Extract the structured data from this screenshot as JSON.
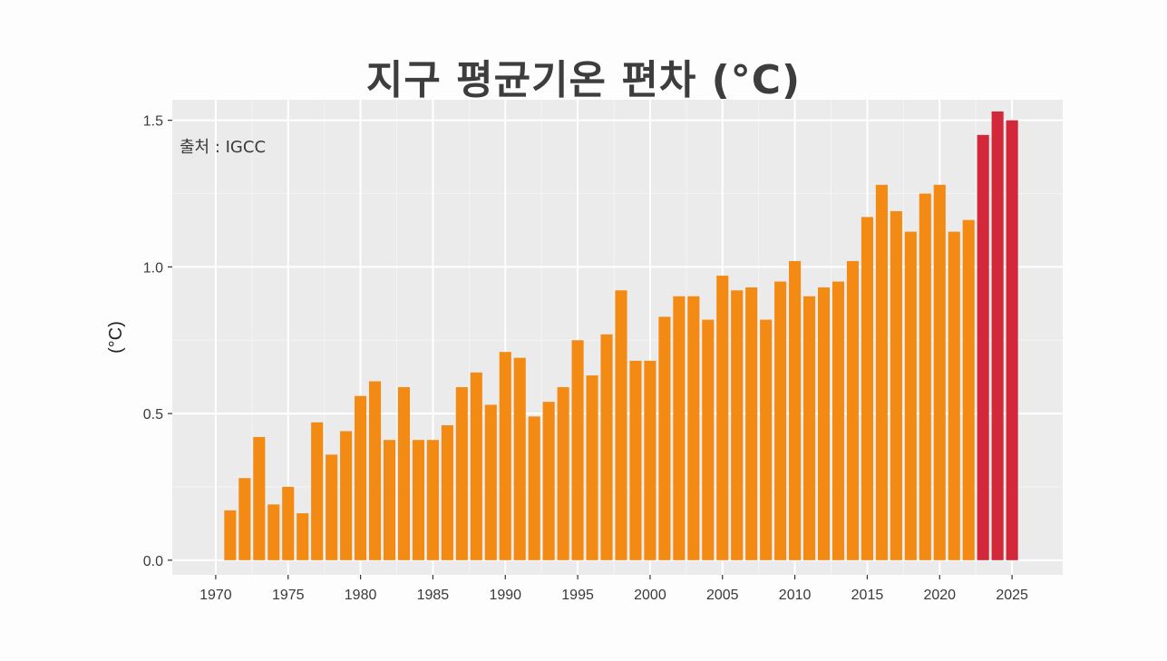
{
  "chart_data": {
    "type": "bar",
    "title": "지구 평균기온 편차 (°C)",
    "ylabel": "(°C)",
    "xlabel": "",
    "annotation": "출처 : IGCC",
    "ylim": [
      -0.05,
      1.57
    ],
    "xlim": [
      1967,
      2028.5
    ],
    "yticks": [
      0.0,
      0.5,
      1.0,
      1.5
    ],
    "ytick_labels": [
      "0.0",
      "0.5",
      "1.0",
      "1.5"
    ],
    "xticks": [
      1970,
      1975,
      1980,
      1985,
      1990,
      1995,
      2000,
      2005,
      2010,
      2015,
      2020,
      2025
    ],
    "xtick_labels": [
      "1970",
      "1975",
      "1980",
      "1985",
      "1990",
      "1995",
      "2000",
      "2005",
      "2010",
      "2015",
      "2020",
      "2025"
    ],
    "grid": true,
    "colors": {
      "normal": "#f28a14",
      "highlight": "#d3283a",
      "panel": "#ebebeb",
      "grid_major": "#ffffff",
      "grid_minor": "#f4f4f4"
    },
    "highlight_from": 2023,
    "x": [
      1971,
      1972,
      1973,
      1974,
      1975,
      1976,
      1977,
      1978,
      1979,
      1980,
      1981,
      1982,
      1983,
      1984,
      1985,
      1986,
      1987,
      1988,
      1989,
      1990,
      1991,
      1992,
      1993,
      1994,
      1995,
      1996,
      1997,
      1998,
      1999,
      2000,
      2001,
      2002,
      2003,
      2004,
      2005,
      2006,
      2007,
      2008,
      2009,
      2010,
      2011,
      2012,
      2013,
      2014,
      2015,
      2016,
      2017,
      2018,
      2019,
      2020,
      2021,
      2022,
      2023,
      2024,
      2025
    ],
    "values": [
      0.17,
      0.28,
      0.42,
      0.19,
      0.25,
      0.16,
      0.47,
      0.36,
      0.44,
      0.56,
      0.61,
      0.41,
      0.59,
      0.41,
      0.41,
      0.46,
      0.59,
      0.64,
      0.53,
      0.71,
      0.69,
      0.49,
      0.54,
      0.59,
      0.75,
      0.63,
      0.77,
      0.92,
      0.68,
      0.68,
      0.83,
      0.9,
      0.9,
      0.82,
      0.97,
      0.92,
      0.93,
      0.82,
      0.95,
      1.02,
      0.9,
      0.93,
      0.95,
      1.02,
      1.17,
      1.28,
      1.19,
      1.12,
      1.25,
      1.28,
      1.12,
      1.16,
      1.45,
      1.53,
      1.5
    ]
  }
}
